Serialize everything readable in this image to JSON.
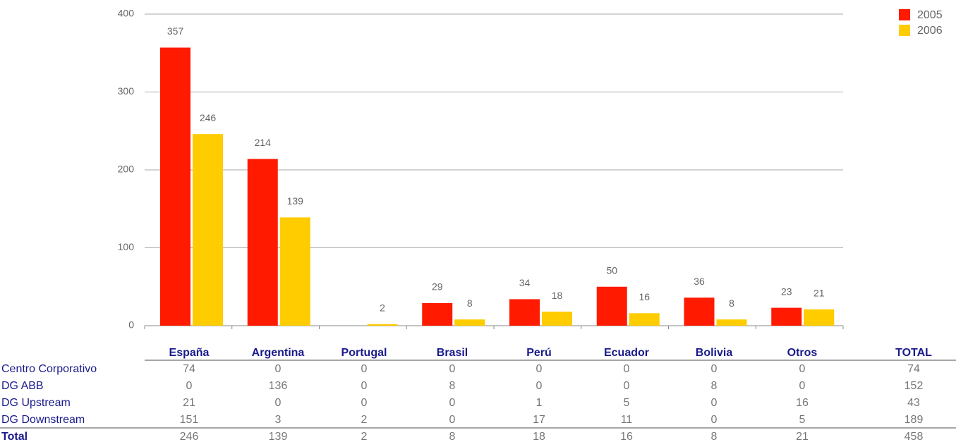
{
  "chart_data": {
    "type": "bar",
    "categories": [
      "España",
      "Argentina",
      "Portugal",
      "Brasil",
      "Perú",
      "Ecuador",
      "Bolivia",
      "Otros"
    ],
    "series": [
      {
        "name": "2005",
        "color": "#ff1a00",
        "values": [
          357,
          214,
          null,
          29,
          34,
          50,
          36,
          23
        ]
      },
      {
        "name": "2006",
        "color": "#ffcc00",
        "values": [
          246,
          139,
          2,
          8,
          18,
          16,
          8,
          21
        ]
      }
    ],
    "ylim": [
      0,
      400
    ],
    "yticks": [
      0,
      100,
      200,
      300,
      400
    ],
    "grid": true,
    "legend": "top-right"
  },
  "table": {
    "columns": [
      "España",
      "Argentina",
      "Portugal",
      "Brasil",
      "Perú",
      "Ecuador",
      "Bolivia",
      "Otros",
      "TOTAL"
    ],
    "rows": [
      {
        "label": "Centro Corporativo",
        "values": [
          74,
          0,
          0,
          0,
          0,
          0,
          0,
          0,
          74
        ]
      },
      {
        "label": "DG ABB",
        "values": [
          0,
          136,
          0,
          8,
          0,
          0,
          8,
          0,
          152
        ]
      },
      {
        "label": "DG Upstream",
        "values": [
          21,
          0,
          0,
          0,
          1,
          5,
          0,
          16,
          43
        ]
      },
      {
        "label": "DG Downstream",
        "values": [
          151,
          3,
          2,
          0,
          17,
          11,
          0,
          5,
          189
        ]
      },
      {
        "label": "Total",
        "values": [
          246,
          139,
          2,
          8,
          18,
          16,
          8,
          21,
          458
        ]
      }
    ]
  }
}
